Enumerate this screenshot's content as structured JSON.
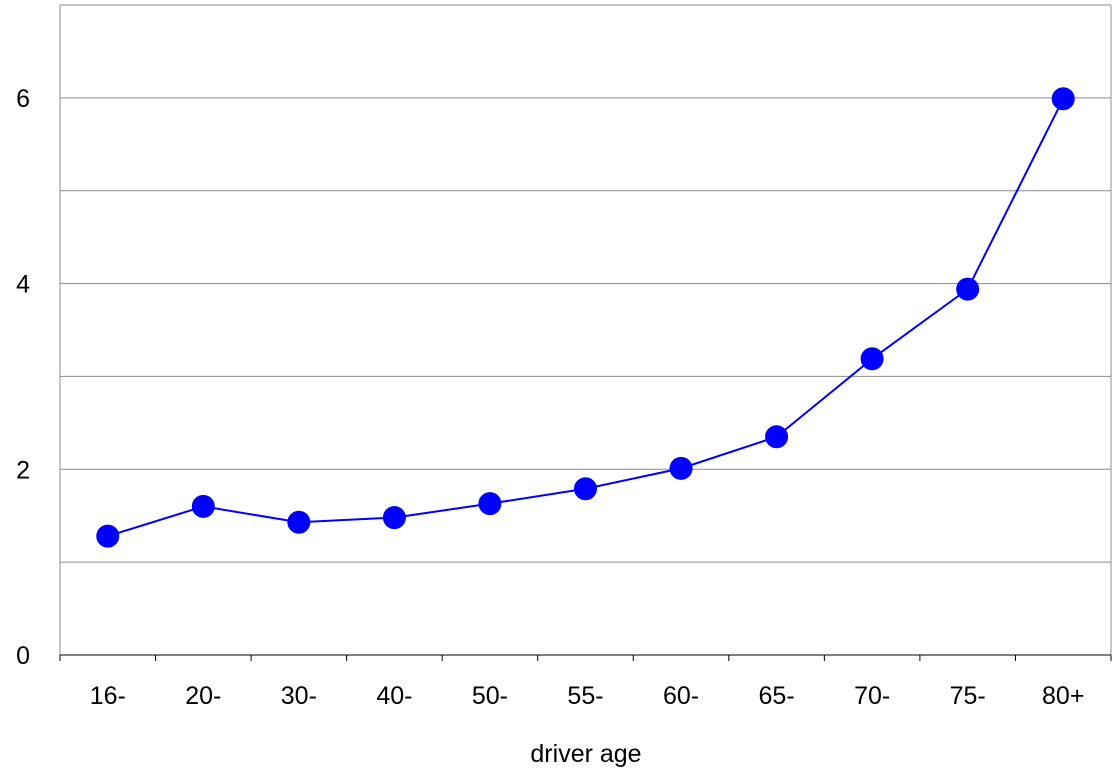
{
  "chart_data": {
    "type": "line",
    "title": "",
    "xlabel": "driver age",
    "ylabel": "",
    "categories": [
      "16-",
      "20-",
      "30-",
      "40-",
      "50-",
      "55-",
      "60-",
      "65-",
      "70-",
      "75-",
      "80+"
    ],
    "series": [
      {
        "values": [
          1.28,
          1.6,
          1.43,
          1.48,
          1.63,
          1.79,
          2.01,
          2.35,
          3.19,
          3.94,
          5.99
        ],
        "color": "#0000ff"
      }
    ],
    "ylim": [
      0,
      7
    ],
    "yticks": [
      0,
      2,
      4,
      6
    ],
    "ygridlines": [
      1,
      2,
      3,
      4,
      5,
      6
    ],
    "grid": true,
    "legend": "none",
    "marker": "circle"
  }
}
